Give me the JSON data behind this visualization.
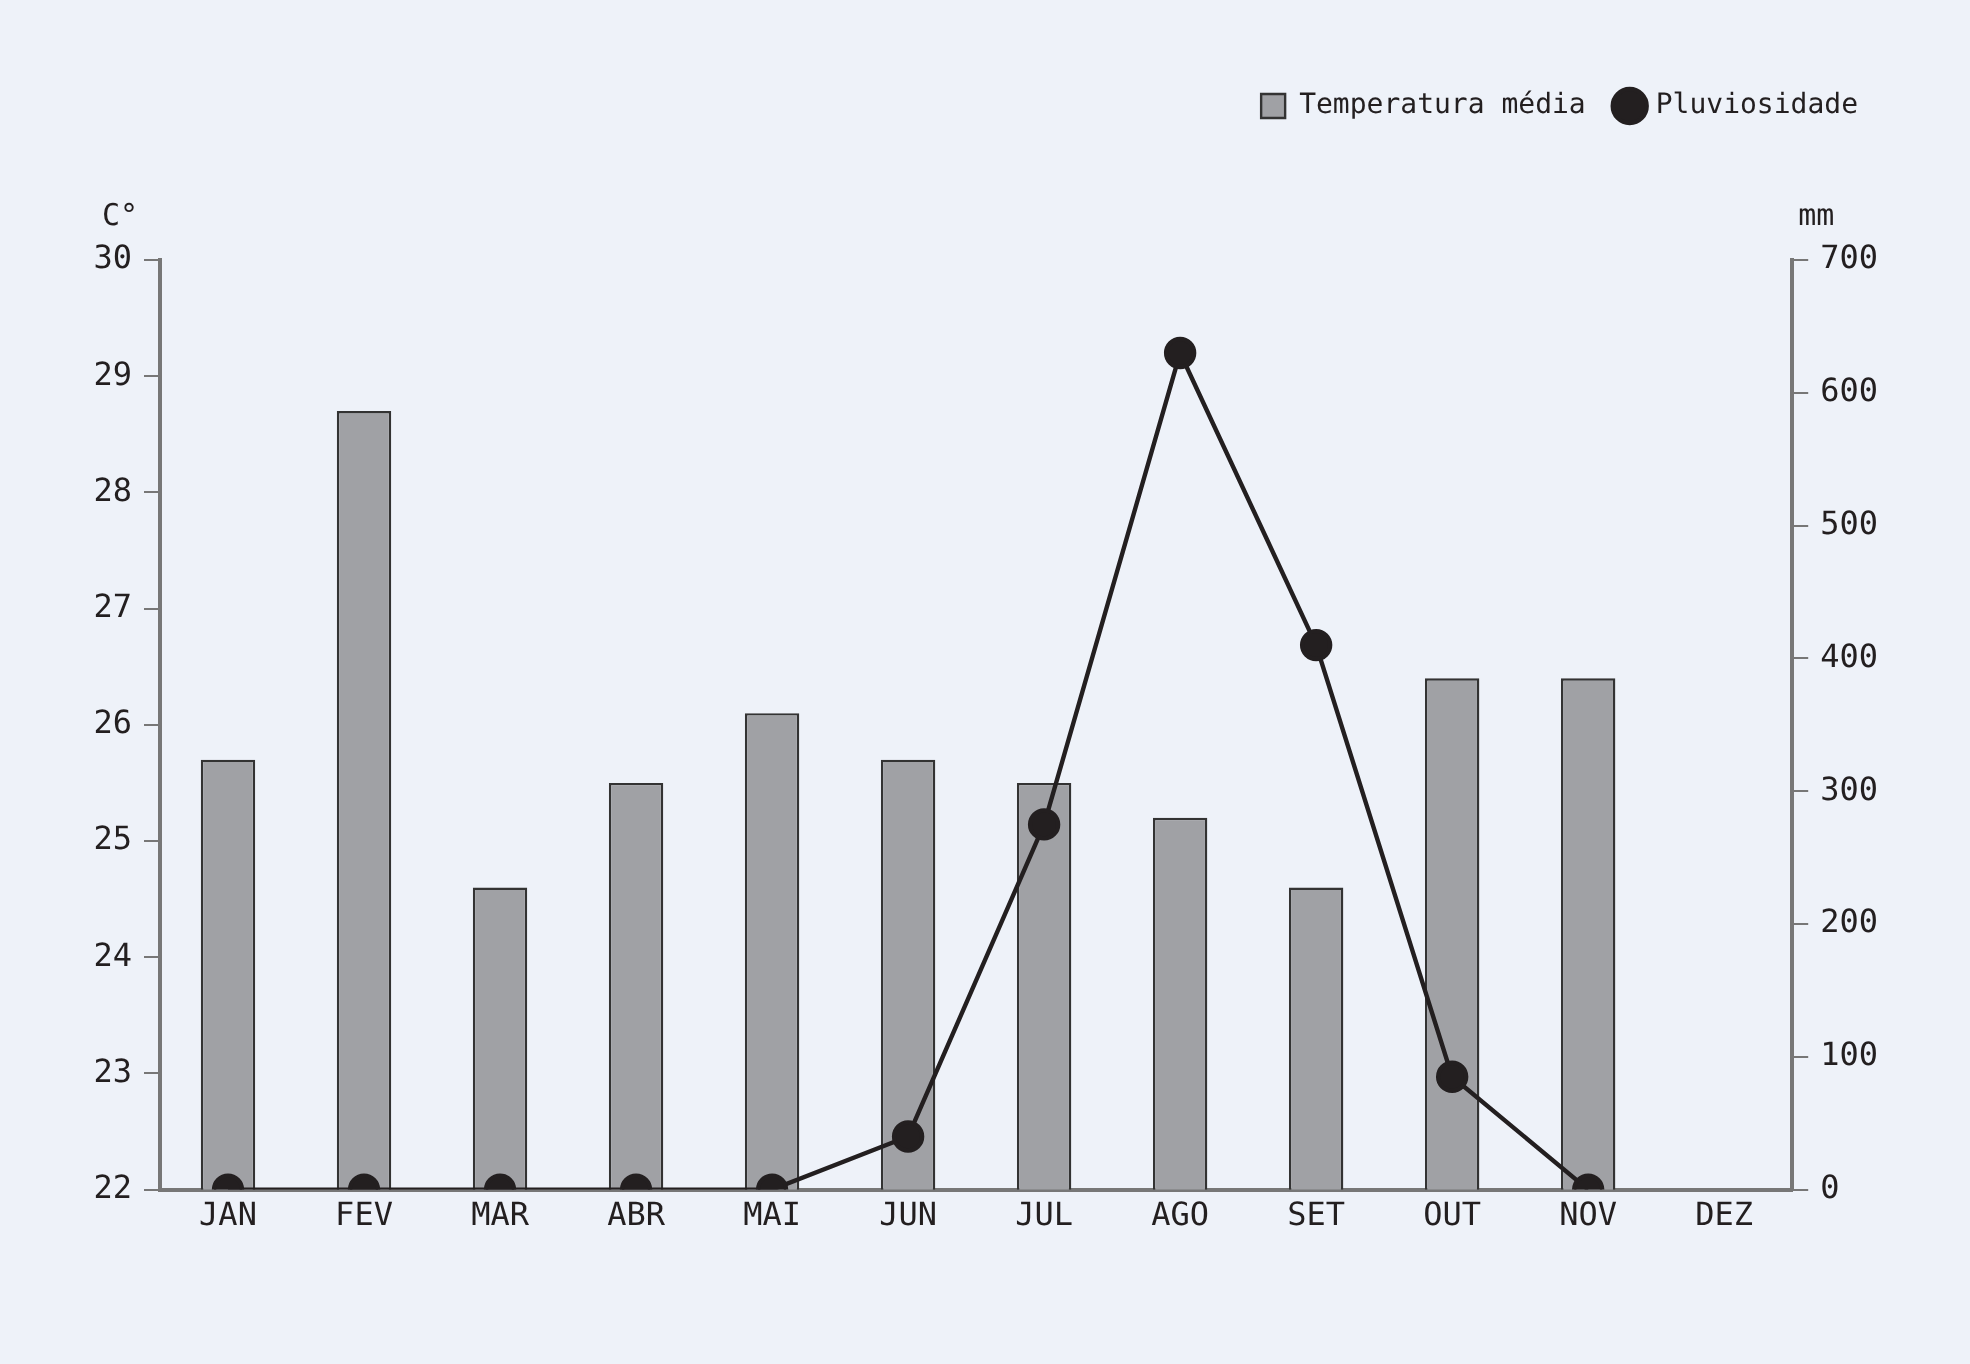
{
  "chart_data": {
    "type": "bar",
    "ylabel": "C°",
    "y2label": "mm",
    "categories": [
      "JAN",
      "FEV",
      "MAR",
      "ABR",
      "MAI",
      "JUN",
      "JUL",
      "AGO",
      "SET",
      "OUT",
      "NOV",
      "DEZ"
    ],
    "series": [
      {
        "name": "Temperatura média",
        "color": "#a0a1a5",
        "values": [
          25.7,
          28.7,
          24.6,
          25.5,
          26.1,
          25.7,
          25.5,
          25.2,
          24.6,
          26.4,
          26.4,
          null
        ]
      },
      {
        "name": "Pluviosidade",
        "type": "line",
        "axis": "y2",
        "color": "#231f20",
        "values": [
          0,
          0,
          0,
          0,
          0,
          40,
          275,
          630,
          410,
          85,
          0,
          null
        ]
      }
    ],
    "ylim": [
      22,
      30
    ],
    "yticks": [
      22,
      23,
      24,
      25,
      26,
      27,
      28,
      29,
      30
    ],
    "y2lim": [
      0,
      700
    ],
    "y2ticks": [
      0,
      100,
      200,
      300,
      400,
      500,
      600,
      700
    ],
    "grid": false,
    "legend": "top right",
    "marker": "circle",
    "line_style": "solid"
  }
}
